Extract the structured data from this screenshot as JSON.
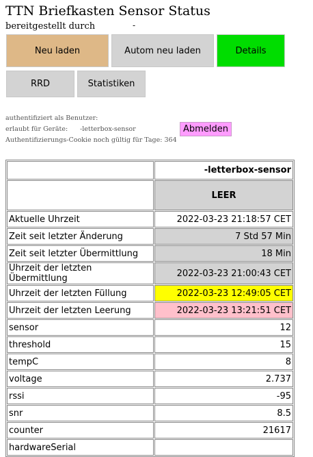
{
  "header": {
    "title": "TTN Briefkasten Sensor Status",
    "subtitle": "bereitgestellt durch",
    "subtitle_mark": "-"
  },
  "buttons": {
    "reload": "Neu laden",
    "auto_reload": "Autom neu laden",
    "details": "Details",
    "rrd": "RRD",
    "statistics": "Statistiken"
  },
  "auth": {
    "user_line": "authentifiziert als Benutzer:",
    "devices_line": "erlaubt für Geräte:",
    "devices_value": "-letterbox-sensor",
    "cookie_line": "Authentifizierungs-Cookie noch gültig für Tage: 364",
    "logout": "Abmelden"
  },
  "status": {
    "sensor_name": "-letterbox-sensor",
    "state": "LEER",
    "rows": [
      {
        "label": "Aktuelle Uhrzeit",
        "value": "2022-03-23 21:18:57 CET"
      },
      {
        "label": "Zeit seit letzter Änderung",
        "value": "7 Std 57 Min"
      },
      {
        "label": "Zeit seit letzter Übermittlung",
        "value": "18 Min"
      },
      {
        "label": "Uhrzeit der letzten Übermittlung",
        "value": "2022-03-23 21:00:43 CET"
      },
      {
        "label": "Uhrzeit der letzten Füllung",
        "value": "2022-03-23 12:49:05 CET"
      },
      {
        "label": "Uhrzeit der letzten Leerung",
        "value": "2022-03-23 13:21:51 CET"
      },
      {
        "label": "sensor",
        "value": "12"
      },
      {
        "label": "threshold",
        "value": "15"
      },
      {
        "label": "tempC",
        "value": "8"
      },
      {
        "label": "voltage",
        "value": "2.737"
      },
      {
        "label": "rssi",
        "value": "-95"
      },
      {
        "label": "snr",
        "value": "8.5"
      },
      {
        "label": "counter",
        "value": "21617"
      },
      {
        "label": "hardwareSerial",
        "value": ""
      }
    ]
  },
  "colors": {
    "reload_bg": "#deb887",
    "neutral_bg": "#d3d3d3",
    "details_bg": "#00dd00",
    "logout_bg": "#ff9cff",
    "fill_highlight": "#ffff00",
    "empty_highlight": "#ffc0cb"
  }
}
